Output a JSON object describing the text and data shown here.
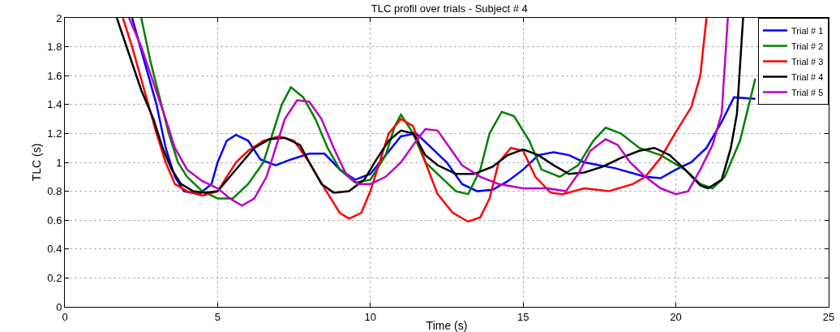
{
  "chart_data": {
    "type": "line",
    "title": "TLC profil over trials - Subject # 4",
    "xlabel": "Time (s)",
    "ylabel": "TLC (s)",
    "xlim": [
      0,
      25
    ],
    "xticks": [
      0,
      5,
      10,
      15,
      20,
      25
    ],
    "ylim": [
      0,
      2
    ],
    "yticks": [
      0,
      0.2,
      0.4,
      0.6,
      0.8,
      1,
      1.2,
      1.4,
      1.6,
      1.8,
      2
    ],
    "grid": true,
    "legend": "top right",
    "line_style": "solid",
    "marker": "none",
    "series": [
      {
        "name": "Trial # 1",
        "color": "#0000ff",
        "x": [
          2.2,
          2.6,
          3.0,
          3.3,
          3.6,
          3.9,
          4.4,
          4.8,
          5.0,
          5.3,
          5.6,
          6.0,
          6.4,
          6.9,
          7.4,
          8.0,
          8.5,
          9.0,
          9.5,
          10.0,
          10.5,
          11.0,
          11.5,
          12.0,
          12.5,
          13.0,
          13.5,
          14.0,
          14.5,
          15.0,
          15.5,
          16.0,
          16.5,
          17.0,
          18.0,
          19.0,
          19.5,
          20.0,
          20.5,
          21.0,
          21.5,
          21.9,
          22.6
        ],
        "values": [
          2,
          1.7,
          1.4,
          1.1,
          0.9,
          0.8,
          0.78,
          0.85,
          1.0,
          1.15,
          1.19,
          1.15,
          1.02,
          0.98,
          1.02,
          1.06,
          1.06,
          0.95,
          0.88,
          0.92,
          1.05,
          1.18,
          1.2,
          1.1,
          1.0,
          0.85,
          0.8,
          0.81,
          0.87,
          0.95,
          1.05,
          1.07,
          1.05,
          1.0,
          0.96,
          0.9,
          0.89,
          0.95,
          1.0,
          1.1,
          1.28,
          1.45,
          1.44
        ]
      },
      {
        "name": "Trial # 2",
        "color": "#008000",
        "x": [
          2.5,
          2.8,
          3.1,
          3.4,
          3.7,
          4.0,
          4.5,
          5.0,
          5.5,
          6.0,
          6.5,
          6.8,
          7.1,
          7.4,
          7.8,
          8.2,
          8.6,
          9.0,
          9.5,
          10.0,
          10.5,
          10.8,
          11.0,
          11.4,
          11.8,
          12.3,
          12.8,
          13.2,
          13.6,
          13.9,
          14.3,
          14.7,
          15.2,
          15.6,
          16.2,
          16.8,
          17.3,
          17.7,
          18.2,
          18.8,
          19.5,
          20.3,
          20.8,
          21.2,
          21.6,
          22.1,
          22.6
        ],
        "values": [
          2,
          1.7,
          1.45,
          1.2,
          1.0,
          0.9,
          0.8,
          0.75,
          0.75,
          0.85,
          1.0,
          1.2,
          1.4,
          1.52,
          1.45,
          1.3,
          1.1,
          0.95,
          0.86,
          0.88,
          1.05,
          1.25,
          1.33,
          1.2,
          1.0,
          0.9,
          0.8,
          0.78,
          0.95,
          1.2,
          1.35,
          1.32,
          1.15,
          0.95,
          0.9,
          0.98,
          1.15,
          1.24,
          1.2,
          1.1,
          1.05,
          0.95,
          0.85,
          0.82,
          0.9,
          1.15,
          1.58
        ]
      },
      {
        "name": "Trial # 3",
        "color": "#ff0000",
        "x": [
          1.9,
          2.2,
          2.6,
          3.0,
          3.3,
          3.6,
          4.0,
          4.5,
          5.0,
          5.3,
          5.6,
          6.0,
          6.5,
          7.0,
          7.5,
          8.0,
          8.5,
          9.0,
          9.3,
          9.7,
          10.0,
          10.3,
          10.6,
          11.0,
          11.4,
          11.8,
          12.2,
          12.7,
          13.2,
          13.6,
          13.9,
          14.2,
          14.6,
          15.0,
          15.4,
          15.9,
          16.3,
          17.0,
          17.8,
          18.6,
          19.0,
          19.5,
          20.0,
          20.5,
          20.8,
          21.0
        ],
        "values": [
          2,
          1.8,
          1.5,
          1.2,
          1.0,
          0.85,
          0.8,
          0.77,
          0.8,
          0.9,
          1.0,
          1.08,
          1.15,
          1.18,
          1.15,
          1.0,
          0.82,
          0.65,
          0.61,
          0.65,
          0.8,
          1.0,
          1.2,
          1.3,
          1.25,
          1.0,
          0.78,
          0.65,
          0.59,
          0.62,
          0.75,
          1.0,
          1.1,
          1.08,
          0.9,
          0.79,
          0.78,
          0.82,
          0.8,
          0.85,
          0.9,
          1.03,
          1.21,
          1.38,
          1.6,
          2
        ]
      },
      {
        "name": "Trial # 4",
        "color": "#000000",
        "x": [
          1.7,
          2.1,
          2.5,
          2.9,
          3.2,
          3.5,
          3.8,
          4.2,
          4.6,
          5.0,
          5.4,
          5.8,
          6.2,
          6.7,
          7.2,
          7.7,
          8.0,
          8.4,
          8.8,
          9.3,
          9.8,
          10.2,
          10.6,
          11.0,
          11.4,
          11.8,
          12.2,
          12.8,
          13.4,
          14.0,
          14.5,
          15.0,
          15.5,
          16.0,
          16.5,
          17.0,
          17.6,
          18.2,
          18.8,
          19.3,
          19.8,
          20.3,
          20.8,
          21.05,
          21.5,
          21.8,
          22.0,
          22.2
        ],
        "values": [
          2,
          1.75,
          1.5,
          1.3,
          1.1,
          0.95,
          0.85,
          0.8,
          0.79,
          0.8,
          0.9,
          1.0,
          1.1,
          1.16,
          1.17,
          1.12,
          1.0,
          0.85,
          0.79,
          0.8,
          0.88,
          1.02,
          1.15,
          1.22,
          1.2,
          1.05,
          0.98,
          0.92,
          0.92,
          0.97,
          1.05,
          1.09,
          1.05,
          0.98,
          0.92,
          0.93,
          0.97,
          1.03,
          1.08,
          1.1,
          1.05,
          0.95,
          0.84,
          0.82,
          0.88,
          1.1,
          1.34,
          2
        ]
      },
      {
        "name": "Trial # 5",
        "color": "#bf00bf",
        "x": [
          2.1,
          2.5,
          2.9,
          3.3,
          3.6,
          4.0,
          4.5,
          5.0,
          5.4,
          5.8,
          6.2,
          6.6,
          6.9,
          7.2,
          7.6,
          8.0,
          8.4,
          8.8,
          9.2,
          9.6,
          10.0,
          10.5,
          11.0,
          11.4,
          11.8,
          12.2,
          12.6,
          13.0,
          13.6,
          14.2,
          15.0,
          15.8,
          16.4,
          16.8,
          17.2,
          17.7,
          18.1,
          18.5,
          19.0,
          19.5,
          20.0,
          20.4,
          20.8,
          21.2,
          21.5,
          21.7
        ],
        "values": [
          2,
          1.8,
          1.55,
          1.3,
          1.1,
          0.95,
          0.87,
          0.82,
          0.75,
          0.7,
          0.75,
          0.9,
          1.1,
          1.3,
          1.43,
          1.42,
          1.3,
          1.1,
          0.92,
          0.85,
          0.85,
          0.9,
          1.0,
          1.12,
          1.23,
          1.22,
          1.1,
          0.98,
          0.9,
          0.85,
          0.82,
          0.82,
          0.8,
          0.92,
          1.08,
          1.16,
          1.12,
          1.0,
          0.9,
          0.82,
          0.78,
          0.8,
          0.95,
          1.12,
          1.34,
          2
        ]
      }
    ]
  }
}
